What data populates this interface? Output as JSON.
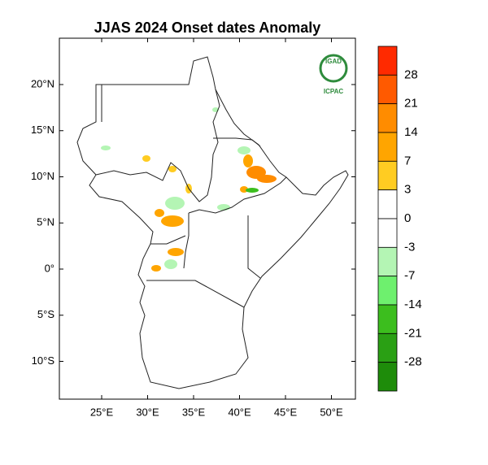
{
  "title": "JJAS 2024 Onset dates Anomaly",
  "logo": {
    "name": "IGAD",
    "org": "ICPAC"
  },
  "lat_ticks": [
    {
      "value": 20,
      "label": "20°N"
    },
    {
      "value": 15,
      "label": "15°N"
    },
    {
      "value": 10,
      "label": "10°N"
    },
    {
      "value": 5,
      "label": "5°N"
    },
    {
      "value": 0,
      "label": "0°"
    },
    {
      "value": -5,
      "label": "5°S"
    },
    {
      "value": -10,
      "label": "10°S"
    }
  ],
  "lon_ticks": [
    {
      "value": 25,
      "label": "25°E"
    },
    {
      "value": 30,
      "label": "30°E"
    },
    {
      "value": 35,
      "label": "35°E"
    },
    {
      "value": 40,
      "label": "40°E"
    },
    {
      "value": 45,
      "label": "45°E"
    },
    {
      "value": 50,
      "label": "50°E"
    }
  ],
  "colorbar": {
    "labels": [
      28,
      21,
      14,
      7,
      3,
      0,
      -3,
      -7,
      -14,
      -21,
      -28
    ],
    "colors": [
      "#ff2a00",
      "#ff5a00",
      "#ff8c00",
      "#ffa500",
      "#ffcc22",
      "#ffffff",
      "#ffffff",
      "#b4f5b4",
      "#6ef06e",
      "#3cbe1e",
      "#2aa014",
      "#1e8c0a"
    ]
  }
}
